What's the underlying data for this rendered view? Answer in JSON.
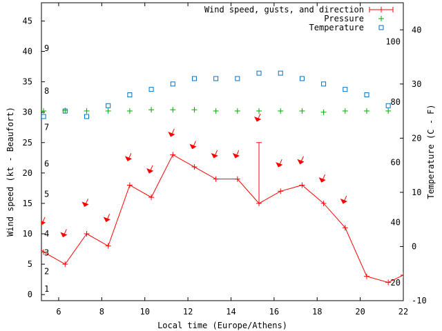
{
  "chart_data": {
    "type": "line",
    "xlabel": "Local time (Europe/Athens)",
    "ylabel_left": "Wind speed (kt - Beaufort)",
    "ylabel_right": "Temperature (C - F)",
    "xlim": [
      5.2,
      22
    ],
    "ylim_left": [
      -1,
      48
    ],
    "ylim_right_c": [
      -10,
      45
    ],
    "x_ticks": [
      6,
      8,
      10,
      12,
      14,
      16,
      18,
      20,
      22
    ],
    "y_ticks_left": [
      0,
      5,
      10,
      15,
      20,
      25,
      30,
      35,
      40,
      45
    ],
    "y_ticks_right_c": [
      -10,
      0,
      10,
      20,
      30,
      40
    ],
    "y_ticks_right_f": [
      20,
      40,
      60,
      80,
      100
    ],
    "beaufort_labels": [
      "1",
      "2",
      "3",
      "4",
      "5",
      "6",
      "7",
      "8",
      "9"
    ],
    "beaufort_kt": [
      0.9,
      3.8,
      6.9,
      10,
      16.5,
      21.5,
      27.5,
      33.5,
      40.5
    ],
    "legend": [
      {
        "label": "Wind speed, gusts, and direction",
        "color": "#ff0000",
        "marker": "plus-line"
      },
      {
        "label": "Pressure",
        "color": "#00aa00",
        "marker": "plus"
      },
      {
        "label": "Temperature",
        "color": "#0070c0",
        "marker": "square"
      }
    ],
    "series": [
      {
        "name": "Wind speed, gusts, and direction",
        "color": "#ff0000",
        "x": [
          5,
          5.3,
          6.3,
          7.3,
          8.3,
          9.3,
          10.3,
          11.3,
          12.3,
          13.3,
          14.3,
          15.3,
          16.3,
          17.3,
          18.3,
          19.3,
          20.3,
          21.3,
          22
        ],
        "y": [
          8,
          7,
          5,
          10,
          8,
          18,
          16,
          23,
          21,
          19,
          19,
          15,
          17,
          18,
          15,
          11,
          3,
          2,
          3.2
        ],
        "gusts": [
          {
            "x": 15.3,
            "low": 15,
            "high": 25
          }
        ],
        "arrows": [
          {
            "x": 5.3,
            "kt": 11.5
          },
          {
            "x": 6.3,
            "kt": 9.5
          },
          {
            "x": 7.3,
            "kt": 14.5
          },
          {
            "x": 8.3,
            "kt": 12.0
          },
          {
            "x": 9.3,
            "kt": 22.0
          },
          {
            "x": 10.3,
            "kt": 20.0
          },
          {
            "x": 11.3,
            "kt": 26.0
          },
          {
            "x": 12.3,
            "kt": 24.0
          },
          {
            "x": 13.3,
            "kt": 22.5
          },
          {
            "x": 14.3,
            "kt": 22.5
          },
          {
            "x": 15.3,
            "kt": 28.5
          },
          {
            "x": 16.3,
            "kt": 21.0
          },
          {
            "x": 17.3,
            "kt": 21.5
          },
          {
            "x": 18.3,
            "kt": 18.5
          },
          {
            "x": 19.3,
            "kt": 15.0
          }
        ]
      },
      {
        "name": "Pressure",
        "color": "#00aa00",
        "axis": "left",
        "x": [
          5.3,
          6.3,
          7.3,
          8.3,
          9.3,
          10.3,
          11.3,
          12.3,
          13.3,
          14.3,
          15.3,
          16.3,
          17.3,
          18.3,
          19.3,
          20.3,
          21.3
        ],
        "y": [
          30.2,
          30.3,
          30.2,
          30.2,
          30.2,
          30.4,
          30.4,
          30.4,
          30.2,
          30.2,
          30.2,
          30.2,
          30.2,
          30.0,
          30.2,
          30.2,
          30.2
        ]
      },
      {
        "name": "Temperature",
        "color": "#0070c0",
        "axis": "right_c",
        "x": [
          5.3,
          6.3,
          7.3,
          8.3,
          9.3,
          10.3,
          11.3,
          12.3,
          13.3,
          14.3,
          15.3,
          16.3,
          17.3,
          18.3,
          19.3,
          20.3,
          21.3
        ],
        "y": [
          24,
          25,
          24,
          26,
          28,
          29,
          30,
          31,
          31,
          31,
          32,
          32,
          31,
          30,
          29,
          28,
          26
        ]
      }
    ]
  }
}
